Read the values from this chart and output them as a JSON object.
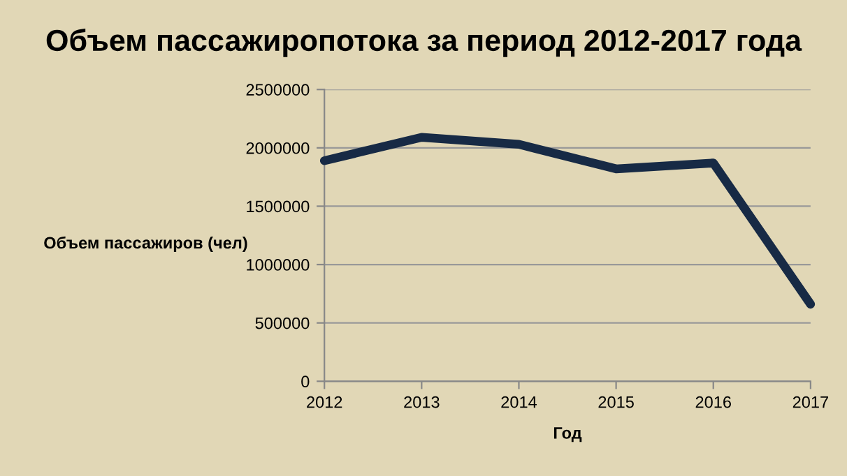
{
  "chart_data": {
    "type": "line",
    "title": "Объем пассажиропотока за период 2012-2017 года",
    "xlabel": "Год",
    "ylabel": "Объем пассажиров (чел)",
    "x": [
      2012,
      2013,
      2014,
      2015,
      2016,
      2017
    ],
    "series": [
      {
        "color": "#172a45",
        "values": [
          1890000,
          2090000,
          2030000,
          1820000,
          1870000,
          660000
        ]
      }
    ],
    "xlim": [
      2012,
      2017
    ],
    "xticks": [
      2012,
      2013,
      2014,
      2015,
      2016,
      2017
    ],
    "ylim": [
      0,
      2500000
    ],
    "yticks": [
      0,
      500000,
      1000000,
      1500000,
      2000000,
      2500000
    ],
    "grid": "y",
    "legend": false,
    "marker": "none",
    "line_style": "solid"
  }
}
